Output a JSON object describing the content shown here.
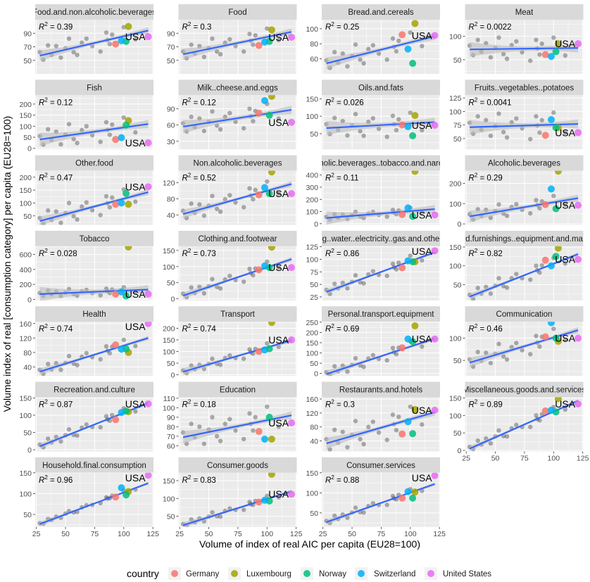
{
  "chart_data": {
    "type": "scatter",
    "faceted": true,
    "xlabel": "Volume of index of real AIC per capita (EU28=100)",
    "ylabel": "Volume index of real [consumption category] per capita (EU28=100)",
    "xlim": [
      24,
      125.5
    ],
    "xticks": [
      25,
      50,
      75,
      100,
      125
    ],
    "grid": true,
    "r2_symbol": "R",
    "r2_exponent": "2",
    "r2_equals": " = ",
    "usa_label": "USA",
    "legend": {
      "title": "country",
      "position": "bottom",
      "entries": [
        "Germany",
        "Luxembourg",
        "Norway",
        "Switzerland",
        "United States"
      ]
    },
    "colors": {
      "Germany": "#F8766D",
      "Luxembourg": "#A3A500",
      "Norway": "#00BF7D",
      "Switzerland": "#00B0F6",
      "United States": "#E76BF3",
      "other_points": "#000000",
      "fit_line": "#3366FF",
      "confidence_band": "#BDBDBD",
      "panel_background": "#EBEBEB",
      "strip_background": "#D9D9D9"
    },
    "x": [
      28,
      31,
      35,
      38,
      42,
      46,
      50,
      53,
      57,
      60,
      64,
      68,
      73,
      80,
      85,
      86,
      88,
      90,
      100,
      110
    ],
    "country_x": [
      93,
      104,
      102,
      98,
      121
    ],
    "fit_x": [
      28,
      121
    ],
    "panels": [
      {
        "title": "Food.and.non.alcoholic.beverages",
        "ylim": [
          30,
          110
        ],
        "yticks": [
          50,
          70,
          90
        ],
        "r2": "0.39",
        "fit": [
          57,
          94
        ],
        "countries": [
          74,
          100,
          78,
          79,
          85
        ],
        "y": [
          62,
          51,
          72,
          58,
          71,
          54,
          68,
          82,
          62,
          58,
          76,
          82,
          71,
          63,
          91,
          80,
          74,
          88,
          99,
          81
        ]
      },
      {
        "title": "Food",
        "ylim": [
          30,
          110
        ],
        "yticks": [
          50,
          70,
          90
        ],
        "r2": "0.3",
        "fit": [
          59,
          92
        ],
        "countries": [
          72,
          95,
          78,
          77,
          84
        ],
        "y": [
          63,
          53,
          73,
          60,
          71,
          55,
          68,
          82,
          63,
          59,
          76,
          81,
          71,
          63,
          89,
          79,
          73,
          87,
          97,
          80
        ]
      },
      {
        "title": "Bread.and.cereals",
        "ylim": [
          40,
          112
        ],
        "yticks": [
          60,
          80,
          100
        ],
        "r2": "0.25",
        "fit": [
          54,
          90
        ],
        "countries": [
          92,
          107,
          54,
          73,
          91
        ],
        "y": [
          58,
          48,
          69,
          55,
          67,
          50,
          64,
          79,
          59,
          54,
          73,
          78,
          67,
          59,
          87,
          76,
          70,
          84,
          95,
          77
        ]
      },
      {
        "title": "Meat",
        "ylim": [
          20,
          135
        ],
        "yticks": [
          50,
          100
        ],
        "r2": "0.0022",
        "fit": [
          72,
          75
        ],
        "countries": [
          61,
          84,
          67,
          57,
          84
        ],
        "y": [
          80,
          60,
          92,
          67,
          85,
          55,
          75,
          97,
          62,
          52,
          81,
          89,
          66,
          48,
          92,
          74,
          61,
          84,
          97,
          59
        ]
      },
      {
        "title": "Fish",
        "ylim": [
          -5,
          240
        ],
        "yticks": [
          0,
          50,
          100,
          150,
          200
        ],
        "r2": "0.12",
        "fit": [
          40,
          110
        ],
        "countries": [
          40,
          125,
          105,
          48,
          25
        ],
        "y": [
          55,
          17,
          86,
          38,
          75,
          18,
          62,
          109,
          42,
          24,
          82,
          100,
          59,
          29,
          118,
          83,
          61,
          107,
          139,
          72
        ]
      },
      {
        "title": "Milk..cheese.and.eggs",
        "ylim": [
          15,
          115
        ],
        "yticks": [
          30,
          60,
          90
        ],
        "r2": "0.12",
        "fit": [
          57,
          88
        ],
        "countries": [
          82,
          113,
          78,
          105,
          65
        ],
        "y": [
          63,
          48,
          75,
          56,
          72,
          49,
          66,
          85,
          59,
          52,
          75,
          82,
          66,
          54,
          90,
          76,
          67,
          86,
          99,
          72
        ]
      },
      {
        "title": "Oils.and.fats",
        "ylim": [
          5,
          160
        ],
        "yticks": [
          50,
          100,
          150
        ],
        "r2": "0.026",
        "fit": [
          66,
          83
        ],
        "countries": [
          75,
          102,
          44,
          70,
          74
        ],
        "y": [
          77,
          49,
          95,
          61,
          86,
          45,
          74,
          106,
          57,
          44,
          84,
          94,
          64,
          41,
          101,
          77,
          60,
          91,
          110,
          60
        ]
      },
      {
        "title": "Fruits..vegetables..potatoes",
        "ylim": [
          30,
          130
        ],
        "yticks": [
          50,
          75,
          100,
          125
        ],
        "r2": "0.0041",
        "fit": [
          71,
          77
        ],
        "countries": [
          56,
          70,
          70,
          85,
          61
        ],
        "y": [
          79,
          59,
          91,
          66,
          84,
          55,
          73,
          96,
          62,
          52,
          80,
          87,
          69,
          49,
          91,
          74,
          61,
          84,
          98,
          61
        ]
      },
      {
        "title": "Other.food",
        "ylim": [
          15,
          225
        ],
        "yticks": [
          50,
          100,
          150,
          200
        ],
        "r2": "0.47",
        "fit": [
          30,
          142
        ],
        "countries": [
          95,
          95,
          137,
          100,
          163
        ],
        "y": [
          42,
          20,
          71,
          34,
          67,
          23,
          61,
          100,
          49,
          36,
          86,
          102,
          72,
          53,
          126,
          99,
          83,
          121,
          152,
          105
        ]
      },
      {
        "title": "Non.alcoholic.beverages",
        "ylim": [
          15,
          150
        ],
        "yticks": [
          40,
          80,
          120
        ],
        "r2": "0.52",
        "fit": [
          42,
          117
        ],
        "countries": [
          90,
          147,
          93,
          108,
          93
        ],
        "y": [
          50,
          32,
          68,
          45,
          66,
          38,
          63,
          87,
          55,
          48,
          79,
          89,
          71,
          59,
          106,
          88,
          79,
          102,
          123,
          93
        ]
      },
      {
        "title": "holic.beverages..tobacco.and.narc",
        "ylim": [
          -10,
          435
        ],
        "yticks": [
          0,
          100,
          200,
          300,
          400
        ],
        "r2": "0.11",
        "fit": [
          47,
          120
        ],
        "countries": [
          75,
          430,
          60,
          130,
          72
        ],
        "y": [
          56,
          34,
          77,
          49,
          73,
          40,
          68,
          97,
          58,
          48,
          84,
          96,
          73,
          58,
          113,
          92,
          79,
          108,
          130,
          93
        ]
      },
      {
        "title": "Alcoholic.beverages",
        "ylim": [
          -5,
          262
        ],
        "yticks": [
          0,
          100,
          200
        ],
        "r2": "0.29",
        "fit": [
          37,
          127
        ],
        "countries": [
          95,
          260,
          75,
          172,
          92
        ],
        "y": [
          48,
          22,
          72,
          40,
          69,
          30,
          63,
          96,
          51,
          40,
          83,
          97,
          70,
          52,
          117,
          93,
          77,
          111,
          138,
          95
        ]
      },
      {
        "title": "Tobacco",
        "ylim": [
          -15,
          710
        ],
        "yticks": [
          0,
          200,
          400,
          600
        ],
        "r2": "0.028",
        "fit": [
          70,
          130
        ],
        "countries": [
          70,
          700,
          45,
          100,
          70
        ],
        "y": [
          85,
          47,
          115,
          67,
          104,
          46,
          89,
          136,
          69,
          50,
          108,
          126,
          84,
          54,
          142,
          107,
          84,
          130,
          161,
          93
        ]
      },
      {
        "title": "Clothing.and.footwear",
        "ylim": [
          -5,
          163
        ],
        "yticks": [
          0,
          50,
          100,
          150
        ],
        "r2": "0.73",
        "fit": [
          10,
          123
        ],
        "countries": [
          90,
          160,
          97,
          102,
          97
        ],
        "y": [
          16,
          5,
          35,
          18,
          37,
          17,
          39,
          61,
          37,
          32,
          60,
          71,
          58,
          53,
          93,
          80,
          73,
          94,
          115,
          97
        ]
      },
      {
        "title": "g..water..electricity..gas.and.othe",
        "ylim": [
          18,
          126
        ],
        "yticks": [
          25,
          50,
          75,
          100,
          125
        ],
        "r2": "0.86",
        "fit": [
          35,
          114
        ],
        "countries": [
          83,
          95,
          95,
          97,
          117
        ],
        "y": [
          39,
          31,
          51,
          42,
          53,
          42,
          55,
          68,
          54,
          52,
          70,
          76,
          69,
          67,
          91,
          84,
          80,
          93,
          107,
          98
        ]
      },
      {
        "title": "d.furnishings..equipment.and.ma",
        "ylim": [
          8,
          152
        ],
        "yticks": [
          50,
          100,
          150
        ],
        "r2": "0.82",
        "fit": [
          18,
          131
        ],
        "countries": [
          115,
          147,
          125,
          100,
          117
        ],
        "y": [
          23,
          12,
          41,
          26,
          44,
          26,
          47,
          67,
          46,
          42,
          67,
          78,
          67,
          63,
          100,
          88,
          82,
          101,
          121,
          106
        ]
      },
      {
        "title": "Health",
        "ylim": [
          15,
          165
        ],
        "yticks": [
          40,
          80,
          120,
          160
        ],
        "r2": "0.74",
        "fit": [
          27,
          120
        ],
        "countries": [
          101,
          80,
          90,
          89,
          160
        ],
        "y": [
          32,
          21,
          48,
          33,
          50,
          32,
          51,
          70,
          49,
          45,
          68,
          78,
          67,
          61,
          97,
          85,
          78,
          96,
          115,
          98
        ]
      },
      {
        "title": "Transport",
        "ylim": [
          -5,
          228
        ],
        "yticks": [
          0,
          50,
          100,
          150,
          200
        ],
        "r2": "0.74",
        "fit": [
          13,
          148
        ],
        "countries": [
          100,
          225,
          112,
          107,
          150
        ],
        "y": [
          19,
          7,
          40,
          24,
          43,
          25,
          47,
          69,
          47,
          43,
          72,
          83,
          72,
          69,
          109,
          97,
          91,
          111,
          135,
          120
        ]
      },
      {
        "title": "Personal.transport.equipment",
        "ylim": [
          -12,
          252
        ],
        "yticks": [
          0,
          50,
          100,
          150,
          200,
          250
        ],
        "r2": "0.69",
        "fit": [
          -3,
          170
        ],
        "countries": [
          125,
          232,
          155,
          168,
          168
        ],
        "y": [
          6,
          -5,
          35,
          10,
          38,
          9,
          42,
          74,
          39,
          32,
          73,
          89,
          71,
          64,
          124,
          104,
          94,
          125,
          157,
          131
        ]
      },
      {
        "title": "Communication",
        "ylim": [
          15,
          137
        ],
        "yticks": [
          50,
          100
        ],
        "r2": "0.46",
        "fit": [
          45,
          118
        ],
        "countries": [
          103,
          93,
          100,
          135,
          100
        ],
        "y": [
          52,
          36,
          69,
          49,
          67,
          44,
          65,
          87,
          59,
          52,
          80,
          89,
          73,
          64,
          105,
          90,
          81,
          103,
          121,
          96
        ]
      },
      {
        "title": "Recreation.and.culture",
        "ylim": [
          -5,
          152
        ],
        "yticks": [
          0,
          50,
          100,
          150
        ],
        "r2": "0.87",
        "fit": [
          10,
          135
        ],
        "countries": [
          87,
          110,
          112,
          108,
          133
        ],
        "y": [
          15,
          7,
          32,
          21,
          37,
          24,
          42,
          59,
          43,
          41,
          64,
          73,
          66,
          65,
          97,
          88,
          84,
          100,
          120,
          111
        ]
      },
      {
        "title": "Education",
        "ylim": [
          54,
          111
        ],
        "yticks": [
          60,
          70,
          80,
          90,
          100,
          110
        ],
        "r2": "0.18",
        "fit": [
          69,
          92
        ],
        "countries": [
          75,
          67,
          90,
          67,
          84
        ],
        "y": [
          74,
          62,
          83,
          69,
          80,
          62,
          77,
          90,
          70,
          65,
          83,
          88,
          76,
          67,
          94,
          83,
          76,
          90,
          101,
          80
        ]
      },
      {
        "title": "Restaurants.and.hotels",
        "ylim": [
          10,
          165
        ],
        "yticks": [
          40,
          80,
          120,
          160
        ],
        "r2": "0.3",
        "fit": [
          33,
          122
        ],
        "countries": [
          60,
          130,
          61,
          95,
          128
        ],
        "y": [
          45,
          16,
          72,
          35,
          66,
          22,
          58,
          97,
          45,
          31,
          80,
          95,
          64,
          43,
          115,
          88,
          71,
          109,
          138,
          87
        ]
      },
      {
        "title": "Miscellaneous.goods.and.services",
        "ylim": [
          -3,
          152
        ],
        "yticks": [
          0,
          50,
          100,
          150
        ],
        "r2": "0.89",
        "fit": [
          5,
          142
        ],
        "countries": [
          113,
          148,
          110,
          115,
          133
        ],
        "y": [
          10,
          4,
          28,
          17,
          34,
          20,
          40,
          57,
          41,
          40,
          63,
          73,
          67,
          67,
          100,
          90,
          86,
          103,
          124,
          117
        ]
      },
      {
        "title": "Household.final.consumption",
        "ylim": [
          20,
          150
        ],
        "yticks": [
          50,
          100,
          150
        ],
        "r2": "0.96",
        "fit": [
          27,
          125
        ],
        "countries": [
          92,
          105,
          97,
          114,
          144
        ],
        "y": [
          29,
          28,
          39,
          37,
          45,
          42,
          52,
          58,
          55,
          56,
          67,
          72,
          73,
          77,
          91,
          88,
          89,
          95,
          107,
          110
        ]
      },
      {
        "title": "Consumer.goods",
        "ylim": [
          20,
          172
        ],
        "yticks": [
          50,
          100,
          150
        ],
        "r2": "0.83",
        "fit": [
          25,
          120
        ],
        "countries": [
          90,
          168,
          93,
          95,
          112
        ],
        "y": [
          28,
          23,
          41,
          33,
          44,
          36,
          49,
          61,
          50,
          49,
          65,
          72,
          68,
          68,
          90,
          84,
          82,
          93,
          107,
          103
        ]
      },
      {
        "title": "Consumer.services",
        "ylim": [
          15,
          150
        ],
        "yticks": [
          50,
          100,
          150
        ],
        "r2": "0.88",
        "fit": [
          27,
          122
        ],
        "countries": [
          87,
          102,
          87,
          103,
          143
        ],
        "y": [
          30,
          25,
          43,
          35,
          46,
          38,
          51,
          63,
          52,
          51,
          67,
          74,
          70,
          70,
          92,
          86,
          84,
          95,
          109,
          105
        ]
      }
    ]
  }
}
